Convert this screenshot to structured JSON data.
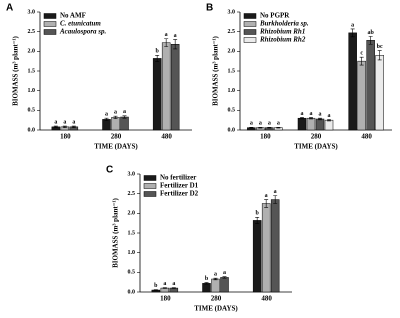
{
  "chart_data": [
    {
      "type": "bar",
      "panel": "A",
      "ylabel": "BIOMASS (m³ plant⁻¹)",
      "xlabel": "TIME (DAYS)",
      "categories": [
        "180",
        "280",
        "480"
      ],
      "ylim": [
        0,
        3
      ],
      "yticks": [
        {
          "value": 0,
          "label": "0.0"
        },
        0.5,
        {
          "value": 1,
          "label": "1.0"
        },
        1.5,
        {
          "value": 2,
          "label": "2.0"
        },
        2.5,
        {
          "value": 3,
          "label": "3.0"
        }
      ],
      "series": [
        {
          "name": "No AMF",
          "color": "#1a1a1a",
          "italic": false,
          "values": [
            0.08,
            0.27,
            1.82
          ],
          "errors": [
            0.02,
            0.03,
            0.08
          ],
          "letters": [
            "a",
            "a",
            "b"
          ]
        },
        {
          "name": "C. etunicatum",
          "color": "#b0b0b0",
          "italic": true,
          "values": [
            0.08,
            0.32,
            2.22
          ],
          "errors": [
            0.02,
            0.03,
            0.1
          ],
          "letters": [
            "a",
            "a",
            "a"
          ]
        },
        {
          "name": "Acaulospora sp.",
          "color": "#555555",
          "italic": true,
          "values": [
            0.08,
            0.33,
            2.18
          ],
          "errors": [
            0.02,
            0.03,
            0.12
          ],
          "letters": [
            "a",
            "a",
            "a"
          ]
        }
      ]
    },
    {
      "type": "bar",
      "panel": "B",
      "ylabel": "BIOMASS (m³ plant⁻¹)",
      "xlabel": "TIME (DAYS)",
      "categories": [
        "180",
        "280",
        "480"
      ],
      "ylim": [
        0,
        3
      ],
      "yticks": [
        {
          "value": 0,
          "label": "0.0"
        },
        0.5,
        {
          "value": 1,
          "label": "1.0"
        },
        1.5,
        {
          "value": 2,
          "label": "2.0"
        },
        2.5,
        {
          "value": 3,
          "label": "3.0"
        }
      ],
      "series": [
        {
          "name": "No PGPR",
          "color": "#1a1a1a",
          "italic": false,
          "values": [
            0.06,
            0.3,
            2.47
          ],
          "errors": [
            0.01,
            0.02,
            0.1
          ],
          "letters": [
            "a",
            "a",
            "a"
          ]
        },
        {
          "name": "Burkholderia sp.",
          "color": "#b0b0b0",
          "italic": true,
          "values": [
            0.06,
            0.3,
            1.75
          ],
          "errors": [
            0.01,
            0.02,
            0.1
          ],
          "letters": [
            "a",
            "a",
            "c"
          ]
        },
        {
          "name": "Rhizobium Rh1",
          "color": "#555555",
          "italic": true,
          "values": [
            0.06,
            0.28,
            2.28
          ],
          "errors": [
            0.01,
            0.02,
            0.1
          ],
          "letters": [
            "a",
            "a",
            "ab"
          ]
        },
        {
          "name": "Rhizobium Rh2",
          "color": "#ebebeb",
          "italic": true,
          "values": [
            0.06,
            0.25,
            1.9
          ],
          "errors": [
            0.01,
            0.02,
            0.12
          ],
          "letters": [
            "a",
            "a",
            "bc"
          ]
        }
      ]
    },
    {
      "type": "bar",
      "panel": "C",
      "ylabel": "BIOMASS (m³ plant⁻¹)",
      "xlabel": "TIME (DAYS)",
      "categories": [
        "180",
        "280",
        "480"
      ],
      "ylim": [
        0,
        3
      ],
      "yticks": [
        {
          "value": 0,
          "label": "0.0"
        },
        0.5,
        {
          "value": 1,
          "label": "1.0"
        },
        1.5,
        {
          "value": 2,
          "label": "2.0"
        },
        2.5,
        {
          "value": 3,
          "label": "3.0"
        }
      ],
      "series": [
        {
          "name": "No fertilizer",
          "color": "#1a1a1a",
          "italic": false,
          "values": [
            0.05,
            0.22,
            1.82
          ],
          "errors": [
            0.01,
            0.02,
            0.08
          ],
          "letters": [
            "b",
            "b",
            "b"
          ]
        },
        {
          "name": "Fertilizer D1",
          "color": "#b0b0b0",
          "italic": false,
          "values": [
            0.1,
            0.33,
            2.25
          ],
          "errors": [
            0.01,
            0.02,
            0.1
          ],
          "letters": [
            "a",
            "a",
            "a"
          ]
        },
        {
          "name": "Fertilizer D2",
          "color": "#555555",
          "italic": false,
          "values": [
            0.1,
            0.37,
            2.35
          ],
          "errors": [
            0.01,
            0.02,
            0.1
          ],
          "letters": [
            "a",
            "a",
            "a"
          ]
        }
      ]
    }
  ]
}
